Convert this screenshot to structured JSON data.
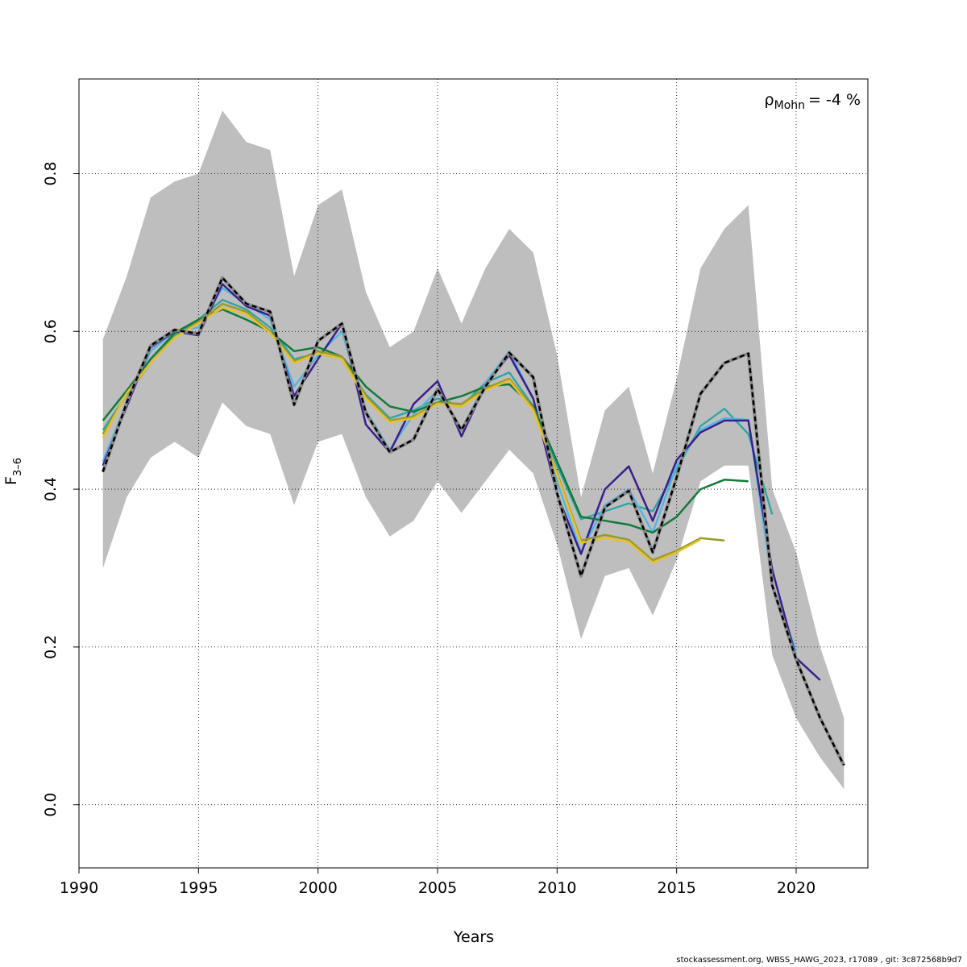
{
  "chart_data": {
    "type": "line",
    "xlabel": "Years",
    "ylabel_main": "F",
    "ylabel_sub": "3–6",
    "annotation": {
      "symbol": "ρ",
      "sub": "Mohn",
      "text": "= -4 %"
    },
    "xlim": [
      1990,
      2023
    ],
    "ylim": [
      -0.08,
      0.92
    ],
    "xticks": [
      1990,
      1995,
      2000,
      2005,
      2010,
      2015,
      2020
    ],
    "yticks": [
      0.0,
      0.2,
      0.4,
      0.6,
      0.8
    ],
    "ytick_labels": [
      "0.0",
      "0.2",
      "0.4",
      "0.6",
      "0.8"
    ],
    "grid": true,
    "band": {
      "x": [
        1991,
        1992,
        1993,
        1994,
        1995,
        1996,
        1997,
        1998,
        1999,
        2000,
        2001,
        2002,
        2003,
        2004,
        2005,
        2006,
        2007,
        2008,
        2009,
        2010,
        2011,
        2012,
        2013,
        2014,
        2015,
        2016,
        2017,
        2018,
        2019,
        2020,
        2021,
        2022
      ],
      "upper": [
        0.59,
        0.67,
        0.77,
        0.79,
        0.8,
        0.88,
        0.84,
        0.83,
        0.67,
        0.76,
        0.78,
        0.65,
        0.58,
        0.6,
        0.68,
        0.61,
        0.68,
        0.73,
        0.7,
        0.57,
        0.39,
        0.5,
        0.53,
        0.42,
        0.54,
        0.68,
        0.73,
        0.76,
        0.4,
        0.32,
        0.2,
        0.11
      ],
      "lower": [
        0.3,
        0.39,
        0.44,
        0.46,
        0.44,
        0.51,
        0.48,
        0.47,
        0.38,
        0.46,
        0.47,
        0.39,
        0.34,
        0.36,
        0.41,
        0.37,
        0.41,
        0.45,
        0.42,
        0.33,
        0.21,
        0.29,
        0.3,
        0.24,
        0.31,
        0.41,
        0.43,
        0.43,
        0.19,
        0.11,
        0.06,
        0.02
      ],
      "color": "#bebebe"
    },
    "series": [
      {
        "x": [
          1991,
          1992,
          1993,
          1994,
          1995,
          1996,
          1997,
          1998,
          1999,
          2000,
          2001,
          2002,
          2003,
          2004,
          2005,
          2006,
          2007,
          2008,
          2009,
          2010,
          2011,
          2012,
          2013,
          2014,
          2015,
          2016,
          2017,
          2018,
          2019
        ],
        "values": [
          0.475,
          0.52,
          0.56,
          0.595,
          0.615,
          0.64,
          0.628,
          0.605,
          0.565,
          0.572,
          0.565,
          0.52,
          0.49,
          0.5,
          0.515,
          0.505,
          0.535,
          0.548,
          0.505,
          0.43,
          0.362,
          0.372,
          0.382,
          0.372,
          0.425,
          0.48,
          0.502,
          0.47,
          0.368
        ],
        "color": "#2ca5a5",
        "width": 2.3,
        "dash": false
      },
      {
        "x": [
          1991,
          1992,
          1993,
          1994,
          1995,
          1996,
          1997,
          1998,
          1999,
          2000,
          2001,
          2002,
          2003,
          2004,
          2005,
          2006,
          2007,
          2008,
          2009,
          2010,
          2011,
          2012,
          2013,
          2014,
          2015,
          2016,
          2017,
          2018,
          2019,
          2020
        ],
        "values": [
          0.435,
          0.51,
          0.575,
          0.6,
          0.605,
          0.655,
          0.635,
          0.615,
          0.53,
          0.57,
          0.6,
          0.5,
          0.45,
          0.495,
          0.525,
          0.475,
          0.535,
          0.575,
          0.515,
          0.41,
          0.32,
          0.38,
          0.4,
          0.345,
          0.43,
          0.475,
          0.49,
          0.488,
          0.28,
          0.195
        ],
        "color": "#4fb4e6",
        "width": 2.3,
        "dash": false
      },
      {
        "x": [
          1991,
          1992,
          1993,
          1994,
          1995,
          1996,
          1997,
          1998,
          1999,
          2000,
          2001,
          2002,
          2003,
          2004,
          2005,
          2006,
          2007,
          2008,
          2009,
          2010,
          2011,
          2012,
          2013,
          2014,
          2015,
          2016,
          2017,
          2018,
          2019,
          2020,
          2021
        ],
        "values": [
          0.43,
          0.505,
          0.58,
          0.6,
          0.595,
          0.66,
          0.632,
          0.62,
          0.518,
          0.565,
          0.61,
          0.482,
          0.447,
          0.508,
          0.537,
          0.467,
          0.532,
          0.57,
          0.515,
          0.393,
          0.318,
          0.4,
          0.429,
          0.36,
          0.437,
          0.472,
          0.487,
          0.487,
          0.298,
          0.186,
          0.158
        ],
        "color": "#3a1f8c",
        "width": 2.5,
        "dash": false
      },
      {
        "x": [
          1991,
          1992,
          1993,
          1994,
          1995,
          1996,
          1997,
          1998,
          1999,
          2000,
          2001,
          2002,
          2003,
          2004,
          2005,
          2006,
          2007,
          2008,
          2009,
          2010,
          2011,
          2012,
          2013,
          2014,
          2015,
          2016,
          2017,
          2018
        ],
        "values": [
          0.487,
          0.525,
          0.565,
          0.598,
          0.615,
          0.628,
          0.615,
          0.6,
          0.575,
          0.58,
          0.568,
          0.53,
          0.505,
          0.498,
          0.51,
          0.518,
          0.53,
          0.533,
          0.505,
          0.435,
          0.365,
          0.36,
          0.355,
          0.345,
          0.365,
          0.4,
          0.412,
          0.41
        ],
        "color": "#137a3a",
        "width": 2.5,
        "dash": false
      },
      {
        "x": [
          1991,
          1992,
          1993,
          1994,
          1995,
          1996,
          1997,
          1998,
          1999,
          2000,
          2001,
          2002,
          2003,
          2004,
          2005,
          2006,
          2007,
          2008,
          2009,
          2010,
          2011,
          2012,
          2013,
          2014,
          2015,
          2016,
          2017
        ],
        "values": [
          0.47,
          0.52,
          0.56,
          0.593,
          0.612,
          0.635,
          0.625,
          0.6,
          0.562,
          0.575,
          0.568,
          0.518,
          0.487,
          0.492,
          0.51,
          0.508,
          0.528,
          0.54,
          0.503,
          0.42,
          0.335,
          0.342,
          0.336,
          0.31,
          0.322,
          0.338,
          0.335
        ],
        "color": "#9a9a28",
        "width": 2.5,
        "dash": false
      },
      {
        "x": [
          1991,
          1992,
          1993,
          1994,
          1995,
          1996,
          1997,
          1998,
          1999,
          2000,
          2001,
          2002,
          2003,
          2004,
          2005,
          2006,
          2007,
          2008,
          2009,
          2010,
          2011,
          2012,
          2013,
          2014,
          2015,
          2016
        ],
        "values": [
          0.465,
          0.522,
          0.56,
          0.592,
          0.61,
          0.63,
          0.622,
          0.598,
          0.56,
          0.572,
          0.565,
          0.515,
          0.485,
          0.49,
          0.508,
          0.505,
          0.525,
          0.538,
          0.5,
          0.418,
          0.332,
          0.338,
          0.333,
          0.307,
          0.32,
          0.336
        ],
        "color": "#e8c02a",
        "width": 2.5,
        "dash": false
      },
      {
        "x": [
          1991,
          1992,
          1993,
          1994,
          1995,
          1996,
          1997,
          1998,
          1999,
          2000,
          2001,
          2002,
          2003,
          2004,
          2005,
          2006,
          2007,
          2008,
          2009,
          2010,
          2011,
          2012,
          2013,
          2014,
          2015,
          2016,
          2017,
          2018,
          2019,
          2020,
          2021,
          2022
        ],
        "values": [
          0.422,
          0.51,
          0.582,
          0.602,
          0.597,
          0.668,
          0.635,
          0.625,
          0.507,
          0.588,
          0.61,
          0.497,
          0.447,
          0.463,
          0.527,
          0.475,
          0.53,
          0.573,
          0.542,
          0.395,
          0.29,
          0.377,
          0.398,
          0.32,
          0.415,
          0.521,
          0.56,
          0.572,
          0.278,
          0.184,
          0.11,
          0.05
        ],
        "color": "#000000",
        "width": 2.5,
        "dash": true
      }
    ]
  },
  "footer": "stockassessment.org, WBSS_HAWG_2023, r17089 , git: 3c872568b9d7"
}
